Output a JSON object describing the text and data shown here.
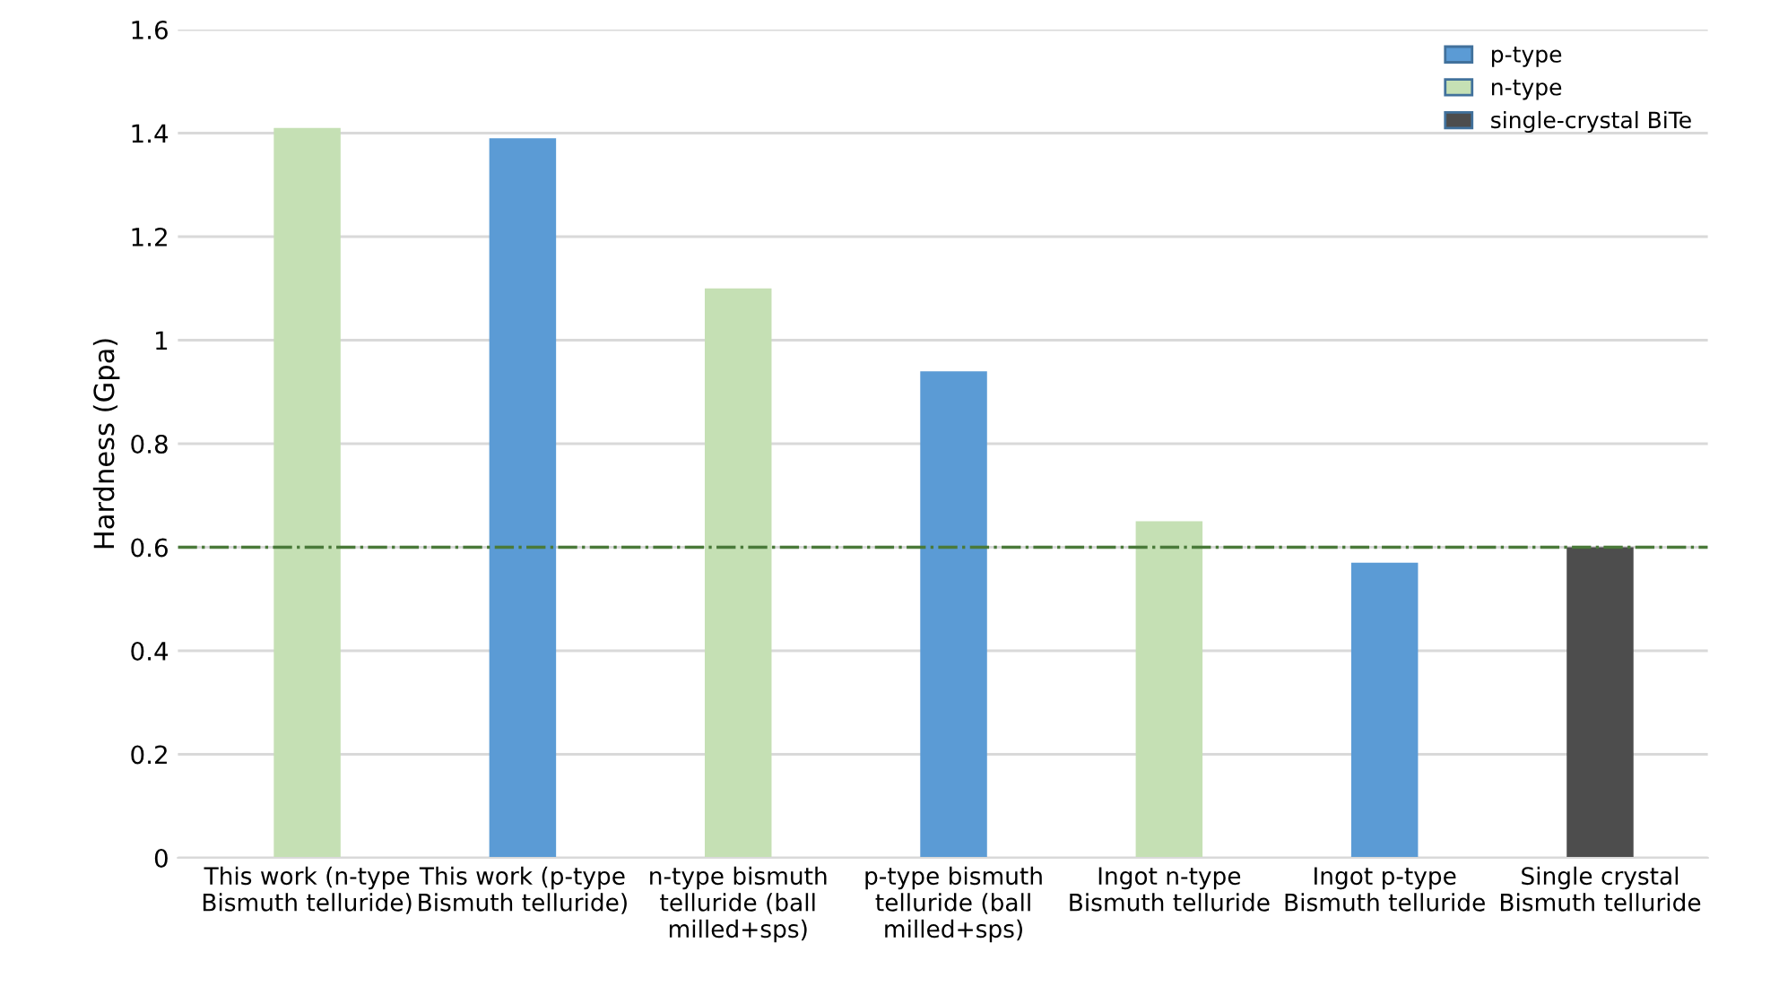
{
  "chart_data": {
    "type": "bar",
    "ylabel": "Hardness (Gpa)",
    "categories": [
      "This work (n-type\nBismuth telluride)",
      "This work (p-type\nBismuth telluride)",
      "n-type bismuth\ntelluride (ball\nmilled+sps)",
      "p-type bismuth\ntelluride (ball\nmilled+sps)",
      "Ingot n-type\nBismuth telluride",
      "Ingot p-type\nBismuth telluride",
      "Single crystal\nBismuth telluride"
    ],
    "series": [
      {
        "name": "p-type",
        "color": "#5b9bd5",
        "values": [
          null,
          1.39,
          null,
          0.94,
          null,
          0.57,
          null
        ]
      },
      {
        "name": "n-type",
        "color": "#c5e0b4",
        "values": [
          1.41,
          null,
          1.1,
          null,
          0.65,
          null,
          null
        ]
      },
      {
        "name": "single-crystal BiTe",
        "color": "#4d4d4d",
        "values": [
          null,
          null,
          null,
          null,
          null,
          null,
          0.6
        ]
      }
    ],
    "ylim": [
      0,
      1.6
    ],
    "yticks": [
      0,
      0.2,
      0.4,
      0.6,
      0.8,
      1,
      1.2,
      1.4,
      1.6
    ],
    "ref_lines": [
      {
        "axis": "y",
        "value": 0.6,
        "color": "#4a7a3a",
        "line_style": "dashdot"
      }
    ],
    "grid": "y",
    "legend": "top right"
  }
}
